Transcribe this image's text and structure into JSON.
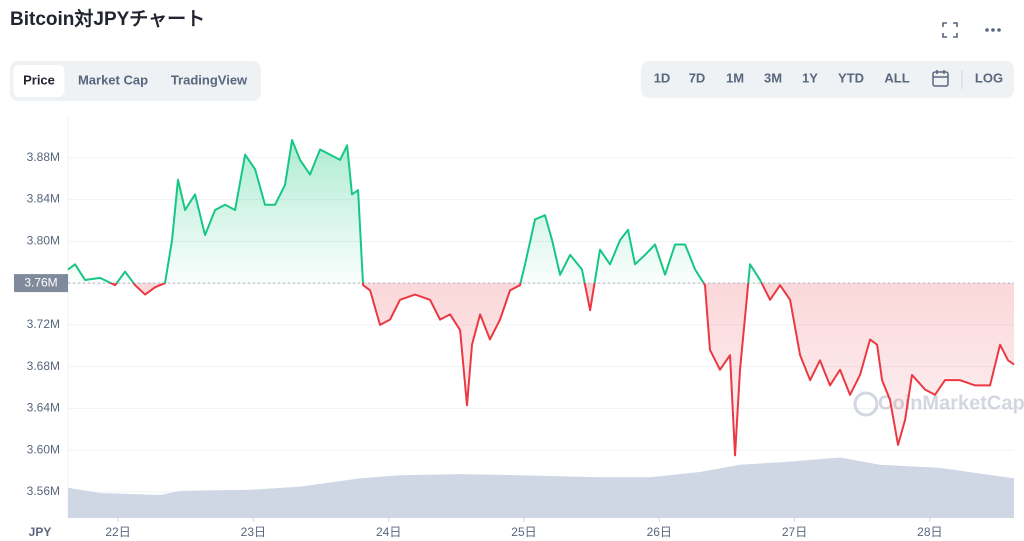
{
  "header": {
    "title": "Bitcoin対JPYチャート"
  },
  "tabs": {
    "items": [
      "Price",
      "Market Cap",
      "TradingView"
    ],
    "active": 0
  },
  "range_buttons": [
    "1D",
    "7D",
    "1M",
    "3M",
    "1Y",
    "YTD",
    "ALL"
  ],
  "log_button": "LOG",
  "chart_data": {
    "type": "baseline-line",
    "currency_label": "JPY",
    "watermark": "CoinMarketCap",
    "xlim": [
      21.63,
      28.622
    ],
    "xticks": [
      {
        "value": 22,
        "label": "22日"
      },
      {
        "value": 23,
        "label": "23日"
      },
      {
        "value": 24,
        "label": "24日"
      },
      {
        "value": 25,
        "label": "25日"
      },
      {
        "value": 26,
        "label": "26日"
      },
      {
        "value": 27,
        "label": "27日"
      },
      {
        "value": 28,
        "label": "28日"
      }
    ],
    "ylim": [
      3535000,
      3921000
    ],
    "yticks": [
      {
        "value": 3560000,
        "label": "3.56M"
      },
      {
        "value": 3600000,
        "label": "3.60M"
      },
      {
        "value": 3640000,
        "label": "3.64M"
      },
      {
        "value": 3680000,
        "label": "3.68M"
      },
      {
        "value": 3720000,
        "label": "3.72M"
      },
      {
        "value": 3760000,
        "label": "3.76M"
      },
      {
        "value": 3800000,
        "label": "3.80M"
      },
      {
        "value": 3840000,
        "label": "3.84M"
      },
      {
        "value": 3880000,
        "label": "3.88M"
      }
    ],
    "grid": true,
    "baseline": {
      "value": 3760000,
      "label": "3.76M"
    },
    "up_color": "#16c784",
    "down_color": "#ea3943",
    "x": [
      21.63,
      21.682,
      21.756,
      21.867,
      21.978,
      22.052,
      22.126,
      22.2,
      22.273,
      22.347,
      22.399,
      22.443,
      22.495,
      22.569,
      22.643,
      22.717,
      22.791,
      22.865,
      22.939,
      23.013,
      23.086,
      23.16,
      23.234,
      23.286,
      23.345,
      23.419,
      23.493,
      23.567,
      23.641,
      23.693,
      23.729,
      23.774,
      23.811,
      23.863,
      23.936,
      24.01,
      24.084,
      24.195,
      24.306,
      24.38,
      24.454,
      24.528,
      24.579,
      24.616,
      24.676,
      24.749,
      24.823,
      24.897,
      24.971,
      25.008,
      25.082,
      25.156,
      25.208,
      25.267,
      25.341,
      25.429,
      25.489,
      25.562,
      25.636,
      25.71,
      25.769,
      25.821,
      25.895,
      25.969,
      26.043,
      26.117,
      26.191,
      26.265,
      26.338,
      26.375,
      26.449,
      26.523,
      26.56,
      26.597,
      26.671,
      26.745,
      26.819,
      26.893,
      26.967,
      27.041,
      27.115,
      27.188,
      27.262,
      27.336,
      27.41,
      27.484,
      27.558,
      27.61,
      27.647,
      27.706,
      27.765,
      27.817,
      27.868,
      27.965,
      28.038,
      28.112,
      28.223,
      28.334,
      28.445,
      28.519,
      28.578,
      28.622
    ],
    "values": [
      3773000,
      3778000,
      3763000,
      3765000,
      3758000,
      3771000,
      3758000,
      3749000,
      3756000,
      3760000,
      3801000,
      3859000,
      3830000,
      3845000,
      3806000,
      3830000,
      3835000,
      3830000,
      3883000,
      3869000,
      3835000,
      3835000,
      3854000,
      3897000,
      3878000,
      3864000,
      3888000,
      3883000,
      3878000,
      3892000,
      3845000,
      3849000,
      3758000,
      3753000,
      3720000,
      3725000,
      3744000,
      3749000,
      3744000,
      3725000,
      3730000,
      3715000,
      3643000,
      3701000,
      3730000,
      3706000,
      3725000,
      3753000,
      3758000,
      3778000,
      3821000,
      3825000,
      3801000,
      3768000,
      3787000,
      3773000,
      3734000,
      3792000,
      3778000,
      3801000,
      3811000,
      3778000,
      3787000,
      3797000,
      3768000,
      3797000,
      3797000,
      3773000,
      3758000,
      3696000,
      3677000,
      3691000,
      3595000,
      3677000,
      3778000,
      3763000,
      3744000,
      3758000,
      3744000,
      3691000,
      3667000,
      3686000,
      3662000,
      3677000,
      3653000,
      3672000,
      3706000,
      3701000,
      3667000,
      3648000,
      3605000,
      3629000,
      3672000,
      3658000,
      3653000,
      3667000,
      3667000,
      3662000,
      3662000,
      3701000,
      3686000,
      3682000
    ],
    "volume_area": {
      "color": "#cfd6e4",
      "x": [
        21.63,
        21.867,
        22.311,
        22.459,
        22.976,
        23.345,
        23.789,
        24.084,
        24.528,
        24.971,
        25.562,
        25.932,
        26.301,
        26.597,
        26.967,
        27.336,
        27.631,
        28.075,
        28.622
      ],
      "values": [
        3564000,
        3559000,
        3557000,
        3561000,
        3562000,
        3565000,
        3573000,
        3576000,
        3577000,
        3576000,
        3574000,
        3574000,
        3579000,
        3586000,
        3589000,
        3593000,
        3586000,
        3583000,
        3573000
      ]
    }
  }
}
